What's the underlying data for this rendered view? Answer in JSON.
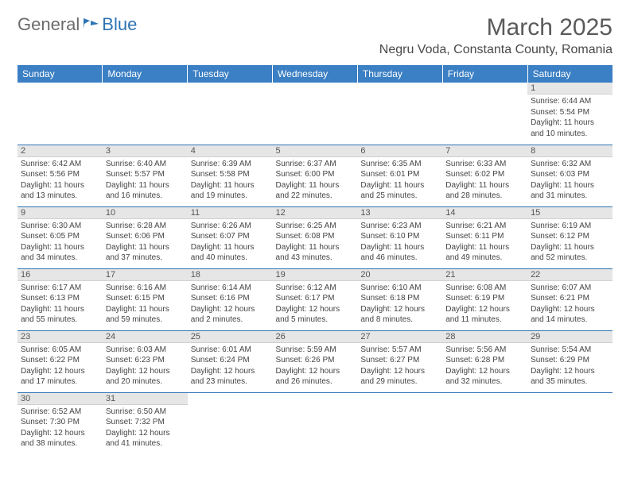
{
  "brand": {
    "general": "General",
    "blue": "Blue"
  },
  "title": "March 2025",
  "location": "Negru Voda, Constanta County, Romania",
  "colors": {
    "header_bg": "#3b7fc4",
    "header_text": "#ffffff",
    "row_border": "#2e74b5",
    "daynum_bg": "#e6e6e6",
    "logo_general": "#6b6b6b",
    "logo_blue": "#2e74b5"
  },
  "weekdays": [
    "Sunday",
    "Monday",
    "Tuesday",
    "Wednesday",
    "Thursday",
    "Friday",
    "Saturday"
  ],
  "weeks": [
    [
      null,
      null,
      null,
      null,
      null,
      null,
      {
        "n": "1",
        "sr": "6:44 AM",
        "ss": "5:54 PM",
        "dl": "11 hours and 10 minutes."
      }
    ],
    [
      {
        "n": "2",
        "sr": "6:42 AM",
        "ss": "5:56 PM",
        "dl": "11 hours and 13 minutes."
      },
      {
        "n": "3",
        "sr": "6:40 AM",
        "ss": "5:57 PM",
        "dl": "11 hours and 16 minutes."
      },
      {
        "n": "4",
        "sr": "6:39 AM",
        "ss": "5:58 PM",
        "dl": "11 hours and 19 minutes."
      },
      {
        "n": "5",
        "sr": "6:37 AM",
        "ss": "6:00 PM",
        "dl": "11 hours and 22 minutes."
      },
      {
        "n": "6",
        "sr": "6:35 AM",
        "ss": "6:01 PM",
        "dl": "11 hours and 25 minutes."
      },
      {
        "n": "7",
        "sr": "6:33 AM",
        "ss": "6:02 PM",
        "dl": "11 hours and 28 minutes."
      },
      {
        "n": "8",
        "sr": "6:32 AM",
        "ss": "6:03 PM",
        "dl": "11 hours and 31 minutes."
      }
    ],
    [
      {
        "n": "9",
        "sr": "6:30 AM",
        "ss": "6:05 PM",
        "dl": "11 hours and 34 minutes."
      },
      {
        "n": "10",
        "sr": "6:28 AM",
        "ss": "6:06 PM",
        "dl": "11 hours and 37 minutes."
      },
      {
        "n": "11",
        "sr": "6:26 AM",
        "ss": "6:07 PM",
        "dl": "11 hours and 40 minutes."
      },
      {
        "n": "12",
        "sr": "6:25 AM",
        "ss": "6:08 PM",
        "dl": "11 hours and 43 minutes."
      },
      {
        "n": "13",
        "sr": "6:23 AM",
        "ss": "6:10 PM",
        "dl": "11 hours and 46 minutes."
      },
      {
        "n": "14",
        "sr": "6:21 AM",
        "ss": "6:11 PM",
        "dl": "11 hours and 49 minutes."
      },
      {
        "n": "15",
        "sr": "6:19 AM",
        "ss": "6:12 PM",
        "dl": "11 hours and 52 minutes."
      }
    ],
    [
      {
        "n": "16",
        "sr": "6:17 AM",
        "ss": "6:13 PM",
        "dl": "11 hours and 55 minutes."
      },
      {
        "n": "17",
        "sr": "6:16 AM",
        "ss": "6:15 PM",
        "dl": "11 hours and 59 minutes."
      },
      {
        "n": "18",
        "sr": "6:14 AM",
        "ss": "6:16 PM",
        "dl": "12 hours and 2 minutes."
      },
      {
        "n": "19",
        "sr": "6:12 AM",
        "ss": "6:17 PM",
        "dl": "12 hours and 5 minutes."
      },
      {
        "n": "20",
        "sr": "6:10 AM",
        "ss": "6:18 PM",
        "dl": "12 hours and 8 minutes."
      },
      {
        "n": "21",
        "sr": "6:08 AM",
        "ss": "6:19 PM",
        "dl": "12 hours and 11 minutes."
      },
      {
        "n": "22",
        "sr": "6:07 AM",
        "ss": "6:21 PM",
        "dl": "12 hours and 14 minutes."
      }
    ],
    [
      {
        "n": "23",
        "sr": "6:05 AM",
        "ss": "6:22 PM",
        "dl": "12 hours and 17 minutes."
      },
      {
        "n": "24",
        "sr": "6:03 AM",
        "ss": "6:23 PM",
        "dl": "12 hours and 20 minutes."
      },
      {
        "n": "25",
        "sr": "6:01 AM",
        "ss": "6:24 PM",
        "dl": "12 hours and 23 minutes."
      },
      {
        "n": "26",
        "sr": "5:59 AM",
        "ss": "6:26 PM",
        "dl": "12 hours and 26 minutes."
      },
      {
        "n": "27",
        "sr": "5:57 AM",
        "ss": "6:27 PM",
        "dl": "12 hours and 29 minutes."
      },
      {
        "n": "28",
        "sr": "5:56 AM",
        "ss": "6:28 PM",
        "dl": "12 hours and 32 minutes."
      },
      {
        "n": "29",
        "sr": "5:54 AM",
        "ss": "6:29 PM",
        "dl": "12 hours and 35 minutes."
      }
    ],
    [
      {
        "n": "30",
        "sr": "6:52 AM",
        "ss": "7:30 PM",
        "dl": "12 hours and 38 minutes."
      },
      {
        "n": "31",
        "sr": "6:50 AM",
        "ss": "7:32 PM",
        "dl": "12 hours and 41 minutes."
      },
      null,
      null,
      null,
      null,
      null
    ]
  ],
  "labels": {
    "sunrise": "Sunrise:",
    "sunset": "Sunset:",
    "daylight": "Daylight:"
  }
}
